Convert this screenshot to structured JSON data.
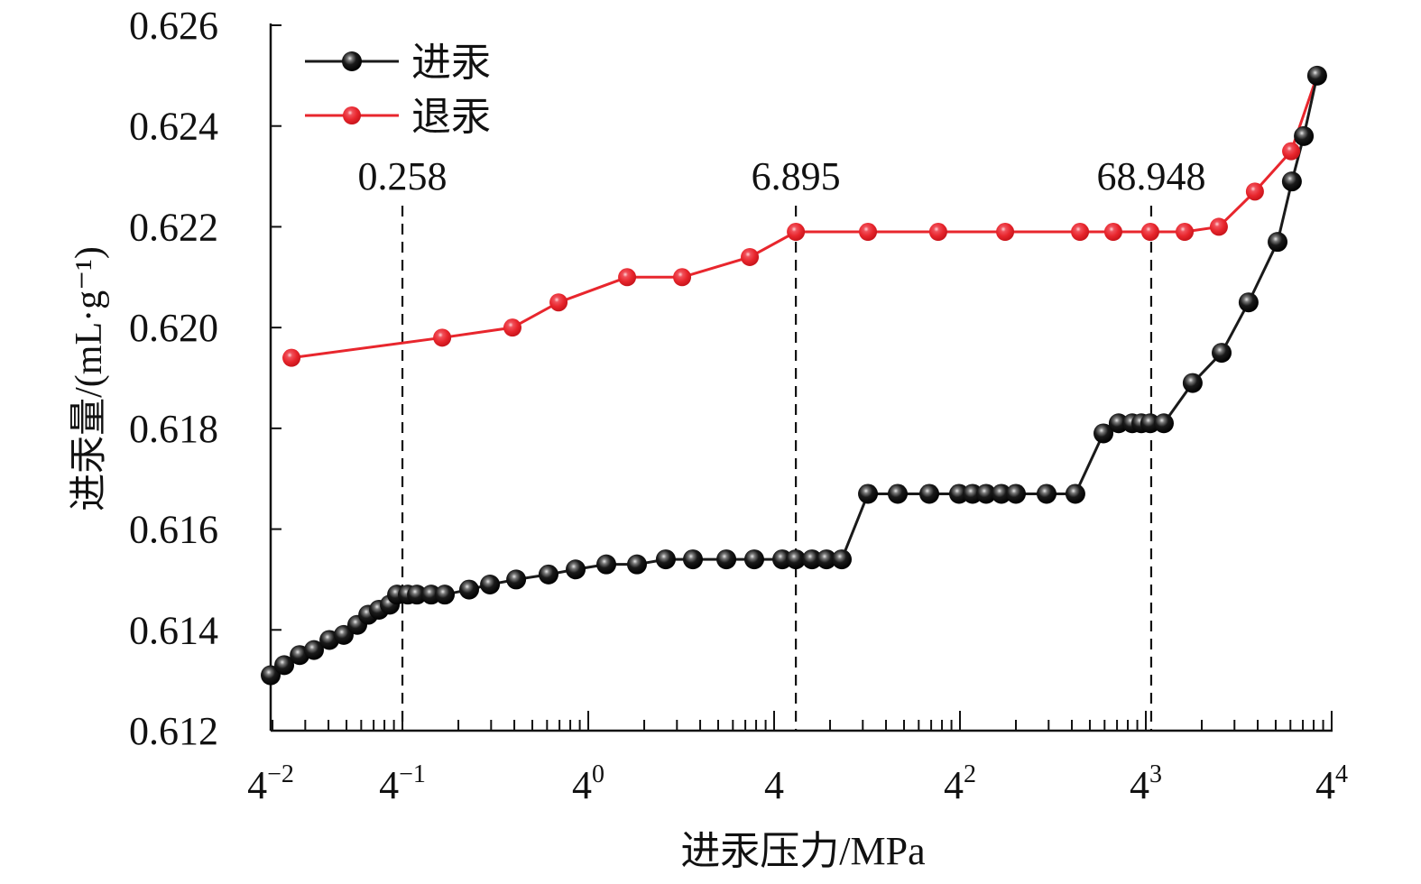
{
  "chart_data": {
    "type": "line",
    "title": "",
    "xlabel": "进汞压力/MPa",
    "ylabel": "进汞量/(mL·g⁻¹)",
    "x_scale": "log10",
    "x_units": "log10 of pressure (MPa)",
    "xlim_log10": [
      -1.709,
      4.005
    ],
    "ylim": [
      0.612,
      0.626
    ],
    "y_ticks": [
      "0.612",
      "0.614",
      "0.616",
      "0.618",
      "0.620",
      "0.622",
      "0.624",
      "0.626"
    ],
    "x_ticks": [
      {
        "at_log10": -1.709,
        "base": "4",
        "exp": "−2"
      },
      {
        "at_log10": -1,
        "base": "4",
        "exp": "−1"
      },
      {
        "at_log10": 0,
        "base": "4",
        "exp": "0"
      },
      {
        "at_log10": 1,
        "base": "4",
        "exp": ""
      },
      {
        "at_log10": 2,
        "base": "4",
        "exp": "2"
      },
      {
        "at_log10": 3,
        "base": "4",
        "exp": "3"
      },
      {
        "at_log10": 4,
        "base": "4",
        "exp": "4"
      }
    ],
    "grid": false,
    "legend_position": "top-left",
    "reference_lines": [
      {
        "label": "0.258",
        "at_log10": -1.0
      },
      {
        "label": "6.895",
        "at_log10": 1.117
      },
      {
        "label": "68.948",
        "at_log10": 3.029
      }
    ],
    "series": [
      {
        "name": "进汞",
        "color": "#1a1a1a",
        "x_log10": [
          -1.709,
          -1.636,
          -1.553,
          -1.476,
          -1.393,
          -1.316,
          -1.243,
          -1.184,
          -1.126,
          -1.068,
          -1.029,
          -0.971,
          -0.922,
          -0.845,
          -0.772,
          -0.641,
          -0.529,
          -0.388,
          -0.214,
          -0.068,
          0.097,
          0.262,
          0.417,
          0.563,
          0.743,
          0.893,
          1.044,
          1.117,
          1.204,
          1.282,
          1.364,
          1.505,
          1.665,
          1.835,
          1.995,
          2.068,
          2.141,
          2.223,
          2.301,
          2.466,
          2.621,
          2.772,
          2.854,
          2.927,
          2.976,
          3.024,
          3.097,
          3.252,
          3.408,
          3.553,
          3.709,
          3.786,
          3.85,
          3.922
        ],
        "y": [
          0.6131,
          0.6133,
          0.6135,
          0.6136,
          0.6138,
          0.6139,
          0.6141,
          0.6143,
          0.6144,
          0.6145,
          0.6147,
          0.6147,
          0.6147,
          0.6147,
          0.6147,
          0.6148,
          0.6149,
          0.615,
          0.6151,
          0.6152,
          0.6153,
          0.6153,
          0.6154,
          0.6154,
          0.6154,
          0.6154,
          0.6154,
          0.6154,
          0.6154,
          0.6154,
          0.6154,
          0.6167,
          0.6167,
          0.6167,
          0.6167,
          0.6167,
          0.6167,
          0.6167,
          0.6167,
          0.6167,
          0.6167,
          0.6179,
          0.6181,
          0.6181,
          0.6181,
          0.6181,
          0.6181,
          0.6189,
          0.6195,
          0.6205,
          0.6217,
          0.6229,
          0.6238,
          0.625
        ]
      },
      {
        "name": "退汞",
        "color": "#e8262d",
        "x_log10": [
          -1.597,
          -0.786,
          -0.408,
          -0.16,
          0.209,
          0.505,
          0.869,
          1.117,
          1.505,
          1.883,
          2.243,
          2.646,
          2.825,
          3.024,
          3.209,
          3.393,
          3.587,
          3.782,
          3.922
        ],
        "y": [
          0.6194,
          0.6198,
          0.62,
          0.6205,
          0.621,
          0.621,
          0.6214,
          0.6219,
          0.6219,
          0.6219,
          0.6219,
          0.6219,
          0.6219,
          0.6219,
          0.6219,
          0.622,
          0.6227,
          0.6235,
          0.625
        ]
      }
    ]
  }
}
